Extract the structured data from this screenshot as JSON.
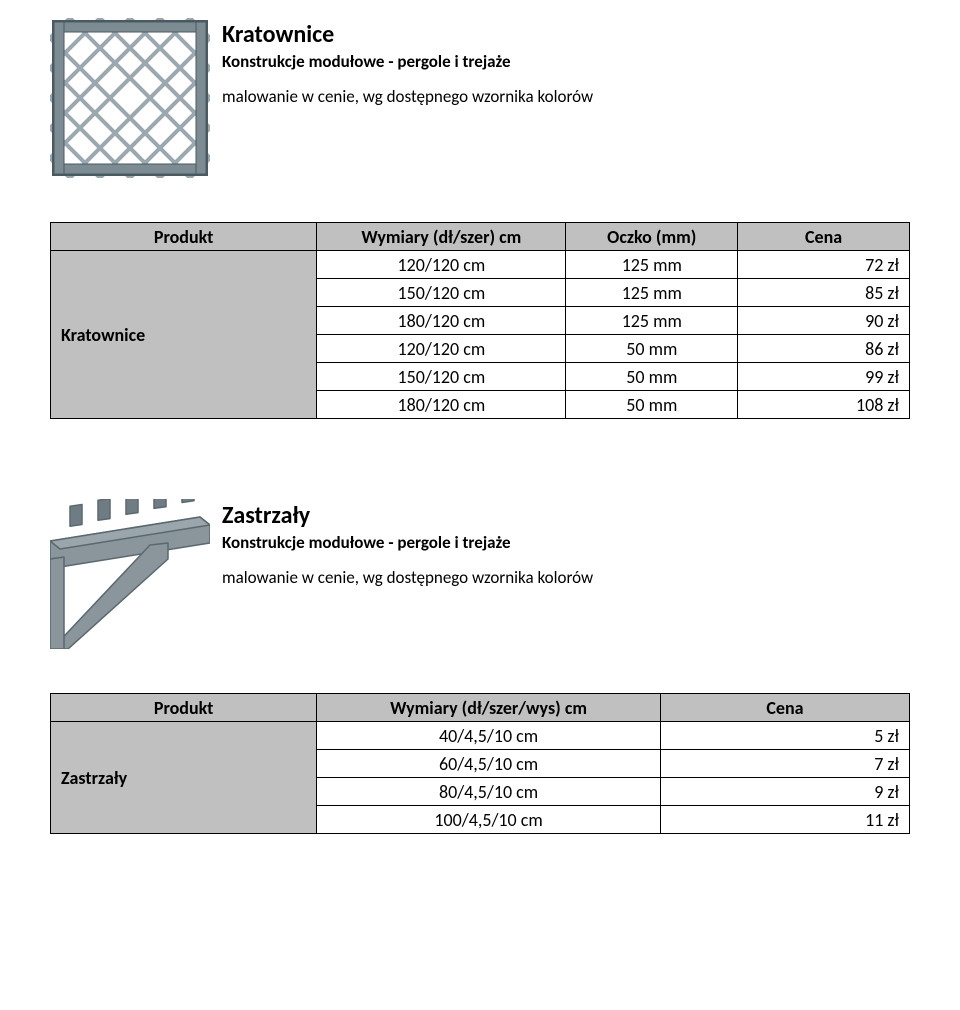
{
  "section1": {
    "title": "Kratownice",
    "subtitle": "Konstrukcje modułowe - pergole i trejaże",
    "note": "malowanie w cenie, wg dostępnego wzornika kolorów",
    "table": {
      "headers": {
        "product": "Produkt",
        "dims": "Wymiary (dł/szer) cm",
        "mesh": "Oczko (mm)",
        "price": "Cena"
      },
      "rowlabel": "Kratownice",
      "rows": [
        {
          "dims": "120/120 cm",
          "mesh": "125 mm",
          "price": "72 zł"
        },
        {
          "dims": "150/120 cm",
          "mesh": "125 mm",
          "price": "85 zł"
        },
        {
          "dims": "180/120 cm",
          "mesh": "125 mm",
          "price": "90 zł"
        },
        {
          "dims": "120/120 cm",
          "mesh": "50 mm",
          "price": "86 zł"
        },
        {
          "dims": "150/120 cm",
          "mesh": "50 mm",
          "price": "99 zł"
        },
        {
          "dims": "180/120 cm",
          "mesh": "50 mm",
          "price": "108 zł"
        }
      ]
    }
  },
  "section2": {
    "title": "Zastrzały",
    "subtitle": "Konstrukcje modułowe - pergole i trejaże",
    "note": "malowanie w cenie, wg dostępnego wzornika kolorów",
    "table": {
      "headers": {
        "product": "Produkt",
        "dims": "Wymiary (dł/szer/wys) cm",
        "price": "Cena"
      },
      "rowlabel": "Zastrzały",
      "rows": [
        {
          "dims": "40/4,5/10 cm",
          "price": "5 zł"
        },
        {
          "dims": "60/4,5/10 cm",
          "price": "7 zł"
        },
        {
          "dims": "80/4,5/10 cm",
          "price": "9 zł"
        },
        {
          "dims": "100/4,5/10 cm",
          "price": "11 zł"
        }
      ]
    }
  },
  "icons": {
    "lattice": {
      "frame_fill": "#7d8b93",
      "frame_stroke": "#4a5a63",
      "lattice_stroke": "#9ba8b0",
      "bg": "#ffffff"
    },
    "bracket": {
      "fill": "#8a959c",
      "stroke": "#5a6870"
    }
  }
}
